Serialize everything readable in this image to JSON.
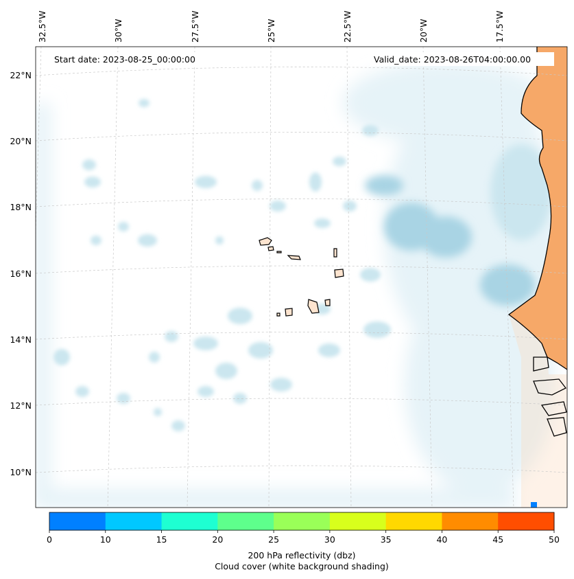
{
  "header": {
    "start_date": "Start date: 2023-08-25_00:00:00",
    "valid_date": "Valid_date: 2023-08-26T04:00:00.00"
  },
  "axes": {
    "lon_labels": [
      "32.5°W",
      "30°W",
      "27.5°W",
      "25°W",
      "22.5°W",
      "20°W",
      "17.5°W"
    ],
    "lat_labels": [
      "22°N",
      "20°N",
      "18°N",
      "16°N",
      "14°N",
      "12°N",
      "10°N"
    ]
  },
  "colorbar": {
    "colors": [
      "#0080ff",
      "#00c8ff",
      "#1effd2",
      "#5eff8c",
      "#9aff58",
      "#d8ff1c",
      "#ffd800",
      "#ff8c00",
      "#ff4e00"
    ],
    "ticks": [
      "0",
      "10",
      "15",
      "20",
      "25",
      "30",
      "35",
      "40",
      "45",
      "50"
    ],
    "label": "200 hPa reflectivity (dbz)",
    "sublabel": "Cloud cover (white background shading)"
  },
  "palette": {
    "cloud_light": "#e6f3f8",
    "cloud_mid": "#cbe6ef",
    "cloud_dark": "#a9d4e4",
    "land_warm": "#f6a868",
    "land_light": "#fbd9bd",
    "island": "#fde4cf",
    "grid": "#c8c8c8"
  }
}
